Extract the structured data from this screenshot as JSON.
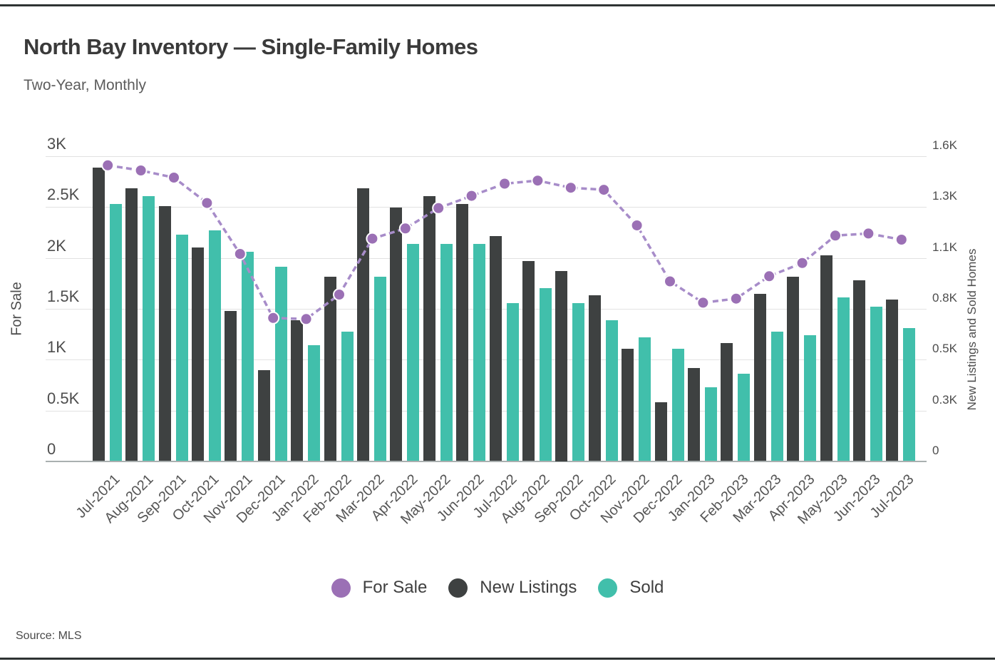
{
  "page": {
    "source": "Source: MLS"
  },
  "legend": {
    "items": [
      {
        "label": "For Sale",
        "color": "#9b70b5"
      },
      {
        "label": "New Listings",
        "color": "#3e4141"
      },
      {
        "label": "Sold",
        "color": "#41bfab"
      }
    ]
  },
  "chart_data": {
    "type": "combo-bar-line",
    "title": "North Bay Inventory — Single-Family Homes",
    "subtitle": "Two-Year, Monthly",
    "categories": [
      "Jul-2021",
      "Aug-2021",
      "Sep-2021",
      "Oct-2021",
      "Nov-2021",
      "Dec-2021",
      "Jan-2022",
      "Feb-2022",
      "Mar-2022",
      "Apr-2022",
      "May-2022",
      "Jun-2022",
      "Jul-2022",
      "Aug-2022",
      "Sep-2022",
      "Oct-2022",
      "Nov-2022",
      "Dec-2022",
      "Jan-2023",
      "Feb-2023",
      "Mar-2023",
      "Apr-2023",
      "May-2023",
      "Jun-2023",
      "Jul-2023"
    ],
    "series": [
      {
        "name": "For Sale",
        "type": "line",
        "axis": "left",
        "line_color": "#a78cc9",
        "marker_color": "#9b70b5",
        "line_style": "dashed",
        "values": [
          2910,
          2860,
          2790,
          2540,
          2040,
          1410,
          1400,
          1640,
          2190,
          2290,
          2490,
          2610,
          2730,
          2760,
          2690,
          2670,
          2320,
          1770,
          1560,
          1600,
          1820,
          1950,
          2220,
          2240,
          2180
        ]
      },
      {
        "name": "New Listings",
        "type": "bar",
        "axis": "right",
        "color": "#3e4141",
        "values": [
          1540,
          1430,
          1340,
          1120,
          790,
          480,
          740,
          970,
          1430,
          1330,
          1390,
          1350,
          1180,
          1050,
          1000,
          870,
          590,
          310,
          490,
          620,
          880,
          970,
          1080,
          950,
          850
        ]
      },
      {
        "name": "Sold",
        "type": "bar",
        "axis": "right",
        "color": "#41bfab",
        "values": [
          1350,
          1390,
          1190,
          1210,
          1100,
          1020,
          610,
          680,
          970,
          1140,
          1140,
          1140,
          830,
          910,
          830,
          740,
          650,
          590,
          390,
          460,
          680,
          660,
          860,
          810,
          700
        ]
      }
    ],
    "left_axis": {
      "title": "For Sale",
      "min": 0,
      "max": 3000,
      "tick_labels": [
        "0",
        "0.5K",
        "1K",
        "1.5K",
        "2K",
        "2.5K",
        "3K"
      ]
    },
    "right_axis": {
      "title": "New Listings and Sold Homes",
      "min": 0,
      "max": 1600,
      "tick_labels": [
        "0",
        "0.3K",
        "0.5K",
        "0.8K",
        "1.1K",
        "1.3K",
        "1.6K"
      ]
    },
    "grid": true,
    "legend_position": "bottom"
  }
}
